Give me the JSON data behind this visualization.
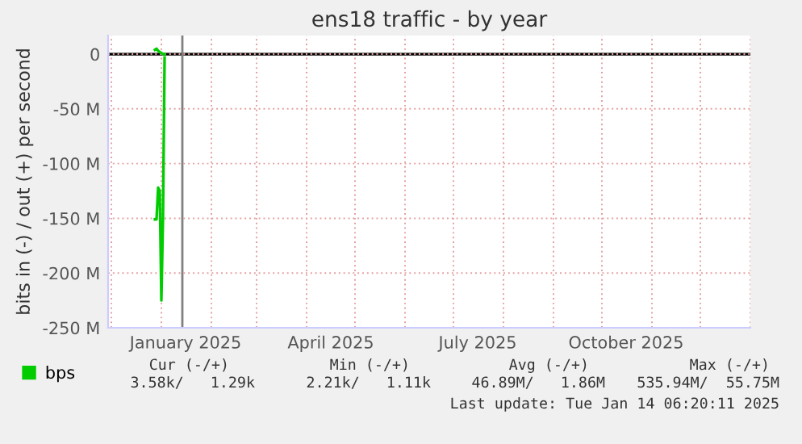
{
  "chart_data": {
    "type": "line",
    "title": "ens18 traffic - by year",
    "ylabel": "bits in (-) / out (+) per second",
    "x": [
      "2024-12-28",
      "2024-12-29",
      "2024-12-30",
      "2024-12-31",
      "2025-01-01",
      "2025-01-02",
      "2025-01-03"
    ],
    "series": [
      {
        "name": "bps",
        "color": "#00cc00",
        "values": [
          -151,
          -151,
          -122,
          -125,
          -225,
          -150,
          -3
        ]
      },
      {
        "color": "#00cc00",
        "values": [
          4,
          5,
          3,
          2,
          1,
          0,
          0
        ]
      }
    ],
    "xlim": [
      "2024-11-29",
      "2026-01-01"
    ],
    "xticks": [
      {
        "value": "2025-01-16",
        "label": "January 2025"
      },
      {
        "value": "2025-04-16",
        "label": "April 2025"
      },
      {
        "value": "2025-07-16",
        "label": "July 2025"
      },
      {
        "value": "2025-10-16",
        "label": "October 2025"
      }
    ],
    "ylim": [
      -250,
      17
    ],
    "yticks": [
      {
        "value": -250,
        "label": "-250 M"
      },
      {
        "value": -200,
        "label": "-200 M"
      },
      {
        "value": -150,
        "label": "-150 M"
      },
      {
        "value": -100,
        "label": "-100 M"
      },
      {
        "value": -50,
        "label": "-50 M"
      },
      0
    ],
    "ref_lines": [
      {
        "axis": "y",
        "value": 0,
        "color": "#000000"
      },
      {
        "axis": "x",
        "value": "2025-01-14",
        "color": "#808080"
      }
    ],
    "grid": true,
    "legend": "bottom",
    "annotations": [
      "Cur (-/+)",
      "Min (-/+)",
      "Avg (-/+)",
      "Max (-/+)",
      "3.58k/   1.29k",
      "2.21k/   1.11k",
      "46.89M/   1.86M",
      "535.94M/  55.75M",
      "Last update: Tue Jan 14 06:20:11 2025"
    ]
  }
}
